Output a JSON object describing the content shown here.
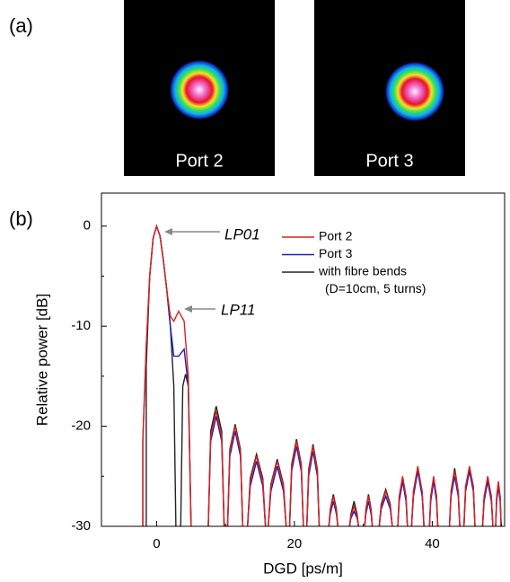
{
  "panels": {
    "a": "(a)",
    "b": "(b)"
  },
  "images": [
    {
      "label": "Port 2"
    },
    {
      "label": "Port 3"
    }
  ],
  "chart_data": {
    "type": "line",
    "xlabel": "DGD [ps/m]",
    "ylabel": "Relative power [dB]",
    "xlim": [
      -8,
      50.5
    ],
    "ylim": [
      -30,
      3.3
    ],
    "xticks": [
      0,
      20,
      40
    ],
    "yticks": [
      -30,
      -20,
      -10,
      0
    ],
    "xminor": [
      -10,
      10,
      30,
      50
    ],
    "yminor": [
      -25,
      -15,
      -5
    ],
    "legend_note": "(D=10cm, 5 turns)",
    "annotations": [
      {
        "text": "LP01"
      },
      {
        "text": "LP11"
      }
    ],
    "series": [
      {
        "name": "Port 2",
        "color": "#e0201b",
        "x": [
          -2,
          -2,
          -1.5,
          -1,
          -0.5,
          0,
          0.5,
          1,
          1.5,
          2,
          2.5,
          3.2,
          4,
          4.6,
          5,
          null,
          7.5,
          7.85,
          8.65,
          9.45,
          9.8,
          null,
          10.3,
          10.63,
          11.4,
          12.17,
          12.5,
          null,
          13.2,
          13.59,
          14.5,
          15.41,
          15.8,
          null,
          16.2,
          16.59,
          17.5,
          18.41,
          18.8,
          null,
          19.3,
          19.6,
          20.3,
          21,
          21.3,
          null,
          21.8,
          22.07,
          22.7,
          23.33,
          23.6,
          null,
          25,
          25.2,
          25.65,
          26.1,
          26.3,
          null,
          28,
          28.2,
          28.65,
          29.1,
          29.3,
          null,
          30.2,
          30.37,
          30.75,
          31.13,
          31.3,
          null,
          32.3,
          32.59,
          33.25,
          33.91,
          34.2,
          null,
          35,
          35.21,
          35.7,
          36.19,
          36.4,
          null,
          37,
          37.27,
          37.9,
          38.53,
          38.8,
          null,
          39.6,
          39.78,
          40.2,
          40.62,
          40.8,
          null,
          42.5,
          42.73,
          43.25,
          43.77,
          44,
          null,
          44.6,
          44.84,
          45.4,
          45.96,
          46.2,
          null,
          47.3,
          47.53,
          48.05,
          48.57,
          48.8,
          null,
          49.2,
          49.35,
          49.6,
          49.85,
          50
        ],
        "values": [
          -30,
          -21.5,
          -12,
          -5,
          -1.2,
          0,
          -1,
          -3.5,
          -6.5,
          -9,
          -9.5,
          -8.5,
          -9.5,
          -15,
          -30,
          null,
          -30,
          -21,
          -18.5,
          -21,
          -30,
          null,
          -30,
          -22.5,
          -20,
          -22.5,
          -30,
          null,
          -30,
          -25.5,
          -23,
          -25.5,
          -30,
          null,
          -30,
          -26,
          -23.5,
          -26,
          -30,
          null,
          -30,
          -24,
          -21.5,
          -24,
          -30,
          null,
          -30,
          -24.5,
          -22,
          -24.5,
          -30,
          null,
          -30,
          -28.5,
          -27,
          -28.5,
          -30,
          null,
          -30,
          -29,
          -28,
          -29,
          -30,
          null,
          -30,
          -28.5,
          -27,
          -28.5,
          -30,
          null,
          -30,
          -28,
          -26.5,
          -28,
          -30,
          null,
          -30,
          -27,
          -25,
          -27,
          -30,
          null,
          -30,
          -26.5,
          -24,
          -26.5,
          -30,
          null,
          -30,
          -27,
          -25,
          -27,
          -30,
          null,
          -30,
          -26.5,
          -24.5,
          -26.5,
          -30,
          null,
          -30,
          -26,
          -24,
          -26,
          -30,
          null,
          -30,
          -27,
          -25,
          -27,
          -30,
          null,
          -30,
          -27,
          -25.5,
          -27,
          -30
        ]
      },
      {
        "name": "Port 3",
        "color": "#1f1fb4",
        "x": [
          -2,
          -2,
          -1.5,
          -1,
          -0.5,
          0,
          0.5,
          1,
          1.5,
          2,
          2.5,
          3.2,
          4,
          4.6,
          5,
          null,
          7.5,
          7.85,
          8.65,
          9.45,
          9.8,
          null,
          10.3,
          10.63,
          11.4,
          12.17,
          12.5,
          null,
          13.2,
          13.59,
          14.5,
          15.41,
          15.8,
          null,
          16.2,
          16.59,
          17.5,
          18.41,
          18.8,
          null,
          19.3,
          19.6,
          20.3,
          21,
          21.3,
          null,
          21.8,
          22.07,
          22.7,
          23.33,
          23.6,
          null,
          25,
          25.2,
          25.65,
          26.1,
          26.3,
          null,
          28,
          28.2,
          28.65,
          29.1,
          29.3,
          null,
          30.2,
          30.37,
          30.75,
          31.13,
          31.3,
          null,
          32.3,
          32.59,
          33.25,
          33.91,
          34.2,
          null,
          35,
          35.21,
          35.7,
          36.19,
          36.4,
          null,
          37,
          37.27,
          37.9,
          38.53,
          38.8,
          null,
          39.6,
          39.78,
          40.2,
          40.62,
          40.8,
          null,
          42.5,
          42.73,
          43.25,
          43.77,
          44,
          null,
          44.6,
          44.84,
          45.4,
          45.96,
          46.2,
          null,
          47.3,
          47.53,
          48.05,
          48.57,
          48.8,
          null,
          49.2,
          49.35,
          49.6,
          49.85,
          50
        ],
        "values": [
          -30,
          -21.5,
          -12,
          -5,
          -1.2,
          0,
          -1,
          -3.5,
          -6.5,
          -10,
          -13,
          -13,
          -12.3,
          -16,
          -30,
          null,
          -30,
          -21.5,
          -19,
          -21.5,
          -30,
          null,
          -30,
          -23,
          -20.5,
          -23,
          -30,
          null,
          -30,
          -26,
          -23.5,
          -26,
          -30,
          null,
          -30,
          -26.5,
          -24,
          -26.5,
          -30,
          null,
          -30,
          -24.5,
          -22,
          -24.5,
          -30,
          null,
          -30,
          -25,
          -22.5,
          -25,
          -30,
          null,
          -30,
          -28.8,
          -27.5,
          -28.8,
          -30,
          null,
          -30,
          -29.2,
          -28.5,
          -29.2,
          -30,
          null,
          -30,
          -28.8,
          -27.5,
          -28.8,
          -30,
          null,
          -30,
          -28.3,
          -27,
          -28.3,
          -30,
          null,
          -30,
          -27.5,
          -25.5,
          -27.5,
          -30,
          null,
          -30,
          -27,
          -24.5,
          -27,
          -30,
          null,
          -30,
          -27.5,
          -25.5,
          -27.5,
          -30,
          null,
          -30,
          -27,
          -25,
          -27,
          -30,
          null,
          -30,
          -26.5,
          -24.5,
          -26.5,
          -30,
          null,
          -30,
          -27.5,
          -25.5,
          -27.5,
          -30,
          null,
          -30,
          -27.5,
          -26,
          -27.5,
          -30
        ]
      },
      {
        "name": "with fibre bends",
        "color": "#222222",
        "x": [
          -1.5,
          -1.5,
          -1,
          -0.5,
          0,
          0.5,
          1,
          1.5,
          2,
          2.5,
          2.8,
          null,
          3.5,
          3.8,
          4.2,
          4.6,
          5,
          null,
          7.5,
          7.85,
          8.65,
          9.45,
          9.8,
          null,
          10.3,
          10.63,
          11.4,
          12.17,
          12.5,
          null,
          13.2,
          13.59,
          14.5,
          15.41,
          15.8,
          null,
          16.2,
          16.59,
          17.5,
          18.41,
          18.8,
          null,
          19.3,
          19.6,
          20.3,
          21,
          21.3,
          null,
          21.8,
          22.07,
          22.7,
          23.33,
          23.6,
          null,
          25,
          25.2,
          25.65,
          26.1,
          26.3,
          null,
          28,
          28.2,
          28.65,
          29.1,
          29.3,
          null,
          30.2,
          30.37,
          30.75,
          31.13,
          31.3,
          null,
          32.3,
          32.59,
          33.25,
          33.91,
          34.2,
          null,
          35,
          35.21,
          35.7,
          36.19,
          36.4,
          null,
          37,
          37.27,
          37.9,
          38.53,
          38.8,
          null,
          39.6,
          39.78,
          40.2,
          40.62,
          40.8,
          null,
          42.5,
          42.73,
          43.25,
          43.77,
          44,
          null,
          44.6,
          44.84,
          45.4,
          45.96,
          46.2,
          null,
          47.3,
          47.53,
          48.05,
          48.57,
          48.8,
          null,
          49.2,
          49.35,
          49.6,
          49.85,
          50
        ],
        "values": [
          -30,
          -14,
          -5,
          -1.2,
          0,
          -1,
          -3.5,
          -6.5,
          -10,
          -16,
          -30,
          null,
          -30,
          -16,
          -14.8,
          -16,
          -30,
          null,
          -30,
          -20.5,
          -18,
          -20.5,
          -30,
          null,
          -30,
          -22.3,
          -19.8,
          -22.3,
          -30,
          null,
          -30,
          -25.2,
          -22.8,
          -25.2,
          -30,
          null,
          -30,
          -25.8,
          -23.3,
          -25.8,
          -30,
          null,
          -30,
          -23.8,
          -21.3,
          -23.8,
          -30,
          null,
          -30,
          -24.3,
          -21.8,
          -24.3,
          -30,
          null,
          -30,
          -28.3,
          -26.8,
          -28.3,
          -30,
          null,
          -30,
          -28.8,
          -27.5,
          -28.8,
          -30,
          null,
          -30,
          -28.3,
          -26.8,
          -28.3,
          -30,
          null,
          -30,
          -27.8,
          -26.3,
          -27.8,
          -30,
          null,
          -30,
          -27,
          -25.2,
          -27,
          -30,
          null,
          -30,
          -26.5,
          -24.2,
          -26.5,
          -30,
          null,
          -30,
          -27,
          -25.2,
          -27,
          -30,
          null,
          -30,
          -26.5,
          -24.2,
          -26.5,
          -30,
          null,
          -30,
          -26,
          -24.2,
          -26,
          -30,
          null,
          -30,
          -27,
          -25.2,
          -27,
          -30,
          null,
          -30,
          -27,
          -25.8,
          -27,
          -30
        ]
      }
    ]
  }
}
